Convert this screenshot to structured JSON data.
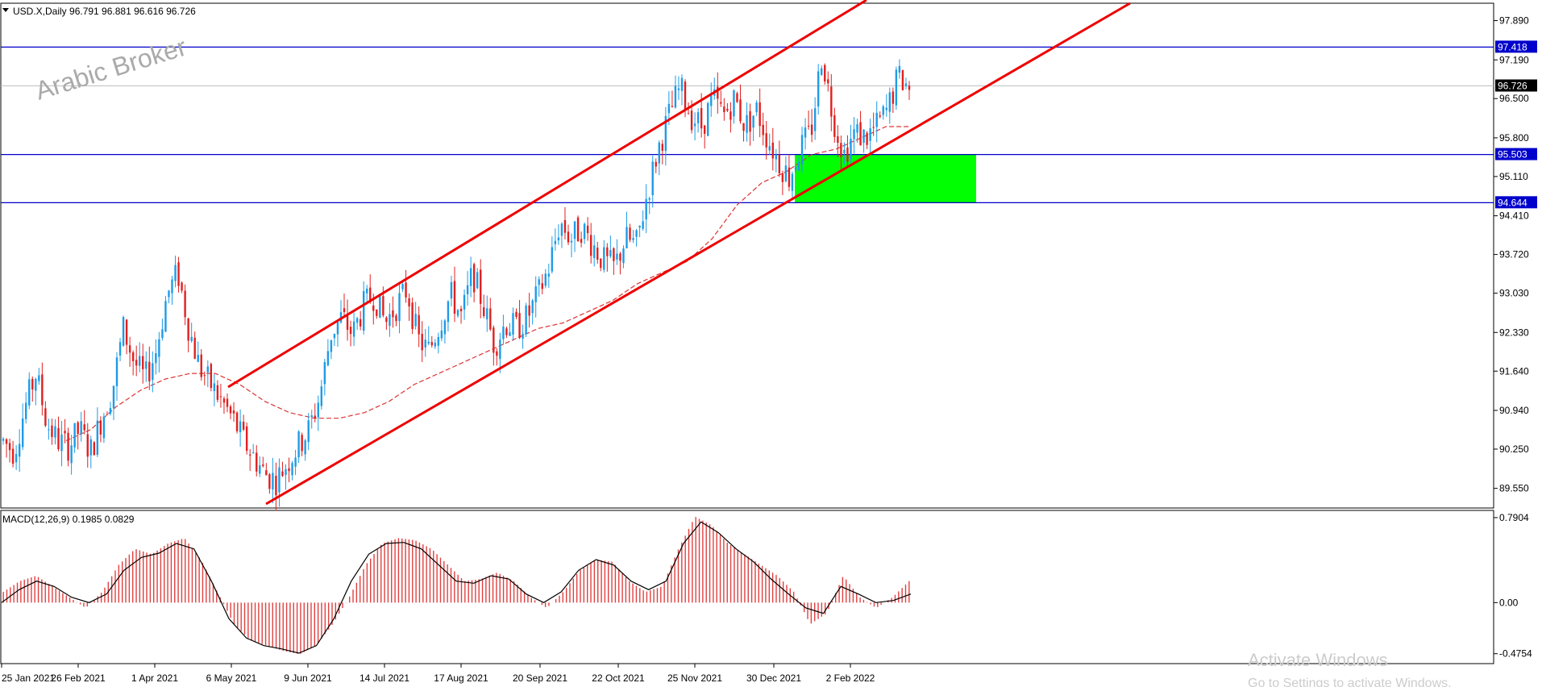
{
  "chart_data": {
    "type": "candlestick",
    "symbol_header": "USD.X,Daily  96.791 96.881 96.616 96.726",
    "watermark": "Arabic Broker",
    "price_axis": {
      "range": [
        89.2,
        98.2
      ],
      "ticks": [
        "97.890",
        "97.190",
        "96.500",
        "95.800",
        "95.110",
        "94.410",
        "93.720",
        "93.030",
        "92.330",
        "91.640",
        "90.940",
        "90.250",
        "89.550"
      ]
    },
    "current_price": "96.726",
    "horizontal_levels": [
      {
        "label": "97.418",
        "value": 97.418,
        "color": "#0000cc"
      },
      {
        "label": "95.503",
        "value": 95.503,
        "color": "#0000cc"
      },
      {
        "label": "94.644",
        "value": 94.644,
        "color": "#0000cc"
      }
    ],
    "date_axis": [
      "25 Jan 2021",
      "26 Feb 2021",
      "1 Apr 2021",
      "6 May 2021",
      "9 Jun 2021",
      "14 Jul 2021",
      "17 Aug 2021",
      "20 Sep 2021",
      "22 Oct 2021",
      "25 Nov 2021",
      "30 Dec 2021",
      "2 Feb 2022"
    ],
    "price_path": [
      90.4,
      90.2,
      91.0,
      91.6,
      90.7,
      90.4,
      90.3,
      90.6,
      90.2,
      90.8,
      91.3,
      92.4,
      91.8,
      91.5,
      92.0,
      93.0,
      93.4,
      92.4,
      91.7,
      91.4,
      91.1,
      90.8,
      90.4,
      90.1,
      89.8,
      89.7,
      90.0,
      90.3,
      90.6,
      91.2,
      92.3,
      92.6,
      92.3,
      92.8,
      93.0,
      92.5,
      92.8,
      93.1,
      92.2,
      92.0,
      92.5,
      93.0,
      92.6,
      93.4,
      92.8,
      92.1,
      92.5,
      92.4,
      92.6,
      93.0,
      93.5,
      94.3,
      94.0,
      94.2,
      93.9,
      93.6,
      93.5,
      94.0,
      93.9,
      94.8,
      95.6,
      96.2,
      96.7,
      96.2,
      96.0,
      96.5,
      96.2,
      96.5,
      96.0,
      96.3,
      95.8,
      95.4,
      95.1,
      95.6,
      95.9,
      97.3,
      96.2,
      95.5,
      95.9,
      95.8,
      96.0,
      96.3,
      96.9,
      96.7
    ],
    "moving_average_path": [
      90.4,
      90.6,
      91.0,
      91.3,
      91.5,
      91.6,
      91.6,
      91.4,
      91.1,
      90.9,
      90.8,
      90.8,
      90.9,
      91.1,
      91.4,
      91.6,
      91.8,
      92.0,
      92.2,
      92.4,
      92.5,
      92.7,
      92.9,
      93.2,
      93.4,
      93.6,
      94.0,
      94.6,
      95.0,
      95.2,
      95.5,
      95.6,
      95.8,
      96.0,
      96.0
    ],
    "channel": {
      "color": "#ee0000"
    },
    "support_zone": {
      "from": 94.644,
      "to": 95.503,
      "color": "#00ff00"
    },
    "macd": {
      "label": "MACD(12,26,9) 0.1985 0.0829",
      "ticks": [
        "0.7904",
        "0.00",
        "-0.4754"
      ],
      "range": [
        -0.56,
        0.85
      ],
      "histogram": [
        0.1,
        0.2,
        0.25,
        0.15,
        0.05,
        -0.05,
        0.1,
        0.35,
        0.5,
        0.45,
        0.55,
        0.6,
        0.4,
        0.1,
        -0.2,
        -0.35,
        -0.4,
        -0.45,
        -0.48,
        -0.4,
        -0.2,
        0.05,
        0.35,
        0.55,
        0.6,
        0.58,
        0.5,
        0.35,
        0.2,
        0.22,
        0.28,
        0.2,
        0.05,
        -0.05,
        0.1,
        0.3,
        0.4,
        0.38,
        0.2,
        0.1,
        0.15,
        0.5,
        0.8,
        0.72,
        0.55,
        0.45,
        0.35,
        0.25,
        0.1,
        -0.2,
        -0.1,
        0.25,
        0.05,
        -0.05,
        0.05,
        0.2
      ],
      "signal": [
        0.0,
        0.12,
        0.2,
        0.15,
        0.05,
        0.0,
        0.08,
        0.3,
        0.42,
        0.46,
        0.55,
        0.5,
        0.2,
        -0.15,
        -0.33,
        -0.4,
        -0.43,
        -0.47,
        -0.4,
        -0.15,
        0.2,
        0.45,
        0.55,
        0.56,
        0.5,
        0.35,
        0.2,
        0.18,
        0.25,
        0.22,
        0.08,
        0.0,
        0.1,
        0.3,
        0.4,
        0.35,
        0.2,
        0.12,
        0.2,
        0.55,
        0.75,
        0.65,
        0.5,
        0.38,
        0.22,
        0.08,
        -0.05,
        -0.1,
        0.15,
        0.08,
        0.0,
        0.02,
        0.08
      ],
      "hist_color": "#e04040"
    },
    "os_watermark_line1": "Activate Windows",
    "os_watermark_line2": "Go to Settings to activate Windows."
  }
}
